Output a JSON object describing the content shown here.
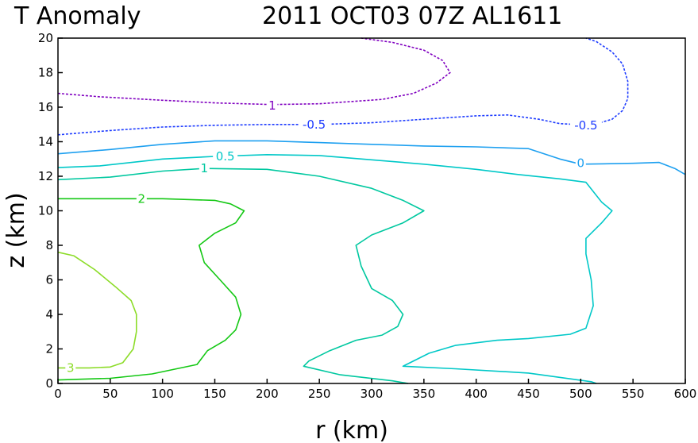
{
  "chart_data": {
    "type": "contour",
    "title_left": "T Anomaly",
    "title_right": "2011 OCT03 07Z  AL1611",
    "xlabel": "r (km)",
    "ylabel": "z (km)",
    "xlim": [
      0,
      600
    ],
    "ylim": [
      0,
      20
    ],
    "xticks": [
      "0",
      "50",
      "100",
      "150",
      "200",
      "250",
      "300",
      "350",
      "400",
      "450",
      "500",
      "550",
      "600"
    ],
    "yticks": [
      "0",
      "2",
      "4",
      "6",
      "8",
      "10",
      "12",
      "14",
      "16",
      "18",
      "20"
    ],
    "contours": [
      {
        "level": "1",
        "color": "#8000c0",
        "dashed": true,
        "segments": [
          [
            [
              0,
              16.8
            ],
            [
              40,
              16.6
            ],
            [
              100,
              16.4
            ],
            [
              150,
              16.25
            ],
            [
              205,
              16.15
            ],
            [
              250,
              16.2
            ],
            [
              310,
              16.45
            ],
            [
              340,
              16.8
            ],
            [
              362,
              17.4
            ],
            [
              375,
              18.0
            ],
            [
              368,
              18.7
            ],
            [
              350,
              19.3
            ],
            [
              320,
              19.75
            ],
            [
              290,
              20.0
            ]
          ]
        ],
        "labels": [
          {
            "x": 205,
            "y": 16.1
          }
        ]
      },
      {
        "level": "-0.5",
        "color": "#1e3cff",
        "dashed": true,
        "segments": [
          [
            [
              0,
              14.4
            ],
            [
              50,
              14.65
            ],
            [
              100,
              14.85
            ],
            [
              150,
              14.95
            ],
            [
              200,
              15.0
            ],
            [
              250,
              15.0
            ],
            [
              300,
              15.1
            ],
            [
              350,
              15.3
            ],
            [
              400,
              15.5
            ],
            [
              430,
              15.55
            ],
            [
              460,
              15.3
            ],
            [
              480,
              15.05
            ],
            [
              510,
              14.95
            ],
            [
              530,
              15.3
            ],
            [
              540,
              15.8
            ],
            [
              545,
              16.5
            ],
            [
              545,
              17.5
            ],
            [
              540,
              18.5
            ],
            [
              530,
              19.2
            ],
            [
              515,
              19.8
            ],
            [
              505,
              20.0
            ]
          ]
        ],
        "labels": [
          {
            "x": 245,
            "y": 15.0
          },
          {
            "x": 505,
            "y": 14.95
          }
        ]
      },
      {
        "level": "0",
        "color": "#1ea0f0",
        "dashed": false,
        "segments": [
          [
            [
              0,
              13.3
            ],
            [
              50,
              13.55
            ],
            [
              100,
              13.85
            ],
            [
              150,
              14.05
            ],
            [
              200,
              14.05
            ],
            [
              250,
              13.95
            ],
            [
              300,
              13.85
            ],
            [
              350,
              13.75
            ],
            [
              400,
              13.7
            ],
            [
              450,
              13.6
            ],
            [
              480,
              13.0
            ],
            [
              500,
              12.7
            ],
            [
              550,
              12.75
            ],
            [
              575,
              12.8
            ],
            [
              590,
              12.45
            ],
            [
              600,
              12.1
            ]
          ]
        ],
        "labels": [
          {
            "x": 500,
            "y": 12.75
          }
        ]
      },
      {
        "level": "0.5",
        "color": "#00c8c8",
        "dashed": false,
        "segments": [
          [
            [
              0,
              12.5
            ],
            [
              40,
              12.6
            ],
            [
              100,
              13.0
            ],
            [
              150,
              13.15
            ],
            [
              200,
              13.25
            ],
            [
              250,
              13.2
            ],
            [
              300,
              12.95
            ],
            [
              350,
              12.7
            ],
            [
              400,
              12.4
            ],
            [
              440,
              12.1
            ],
            [
              480,
              11.85
            ],
            [
              505,
              11.65
            ],
            [
              520,
              10.5
            ],
            [
              530,
              10.0
            ],
            [
              520,
              9.3
            ],
            [
              505,
              8.4
            ],
            [
              505,
              7.5
            ],
            [
              510,
              6.0
            ],
            [
              512,
              4.5
            ],
            [
              505,
              3.2
            ],
            [
              490,
              2.85
            ],
            [
              450,
              2.6
            ],
            [
              420,
              2.5
            ],
            [
              380,
              2.2
            ],
            [
              355,
              1.75
            ],
            [
              330,
              1.0
            ],
            [
              380,
              0.85
            ],
            [
              450,
              0.6
            ],
            [
              510,
              0.1
            ],
            [
              515,
              0.0
            ]
          ]
        ],
        "labels": [
          {
            "x": 160,
            "y": 13.15
          }
        ]
      },
      {
        "level": "1",
        "color": "#00c8a0",
        "dashed": false,
        "segments": [
          [
            [
              0,
              11.8
            ],
            [
              50,
              11.95
            ],
            [
              100,
              12.3
            ],
            [
              140,
              12.45
            ],
            [
              200,
              12.4
            ],
            [
              250,
              12.0
            ],
            [
              300,
              11.3
            ],
            [
              330,
              10.6
            ],
            [
              350,
              10.0
            ],
            [
              330,
              9.3
            ],
            [
              300,
              8.6
            ],
            [
              285,
              8.0
            ],
            [
              290,
              6.8
            ],
            [
              300,
              5.5
            ],
            [
              320,
              4.8
            ],
            [
              330,
              4.0
            ],
            [
              325,
              3.3
            ],
            [
              310,
              2.8
            ],
            [
              285,
              2.5
            ],
            [
              260,
              1.9
            ],
            [
              240,
              1.3
            ],
            [
              235,
              1.0
            ],
            [
              270,
              0.5
            ],
            [
              320,
              0.15
            ],
            [
              335,
              0.0
            ]
          ]
        ],
        "labels": [
          {
            "x": 140,
            "y": 12.45
          }
        ]
      },
      {
        "level": "2",
        "color": "#14c814",
        "dashed": false,
        "segments": [
          [
            [
              0,
              10.7
            ],
            [
              50,
              10.7
            ],
            [
              100,
              10.7
            ],
            [
              150,
              10.6
            ],
            [
              165,
              10.4
            ],
            [
              178,
              10.0
            ],
            [
              170,
              9.3
            ],
            [
              150,
              8.7
            ],
            [
              135,
              8.0
            ],
            [
              140,
              7.0
            ],
            [
              155,
              6.0
            ],
            [
              170,
              5.0
            ],
            [
              175,
              4.0
            ],
            [
              170,
              3.1
            ],
            [
              160,
              2.5
            ],
            [
              143,
              1.9
            ],
            [
              133,
              1.1
            ],
            [
              90,
              0.55
            ],
            [
              50,
              0.3
            ],
            [
              0,
              0.2
            ]
          ]
        ],
        "labels": [
          {
            "x": 80,
            "y": 10.7
          }
        ]
      },
      {
        "level": "3",
        "color": "#8cdc28",
        "dashed": false,
        "segments": [
          [
            [
              0,
              7.6
            ],
            [
              15,
              7.4
            ],
            [
              35,
              6.6
            ],
            [
              55,
              5.6
            ],
            [
              70,
              4.8
            ],
            [
              75,
              4.0
            ],
            [
              75,
              3.0
            ],
            [
              72,
              2.0
            ],
            [
              62,
              1.2
            ],
            [
              50,
              0.95
            ],
            [
              30,
              0.9
            ],
            [
              0,
              0.9
            ]
          ]
        ],
        "labels": [
          {
            "x": 12,
            "y": 0.9
          }
        ]
      }
    ]
  }
}
